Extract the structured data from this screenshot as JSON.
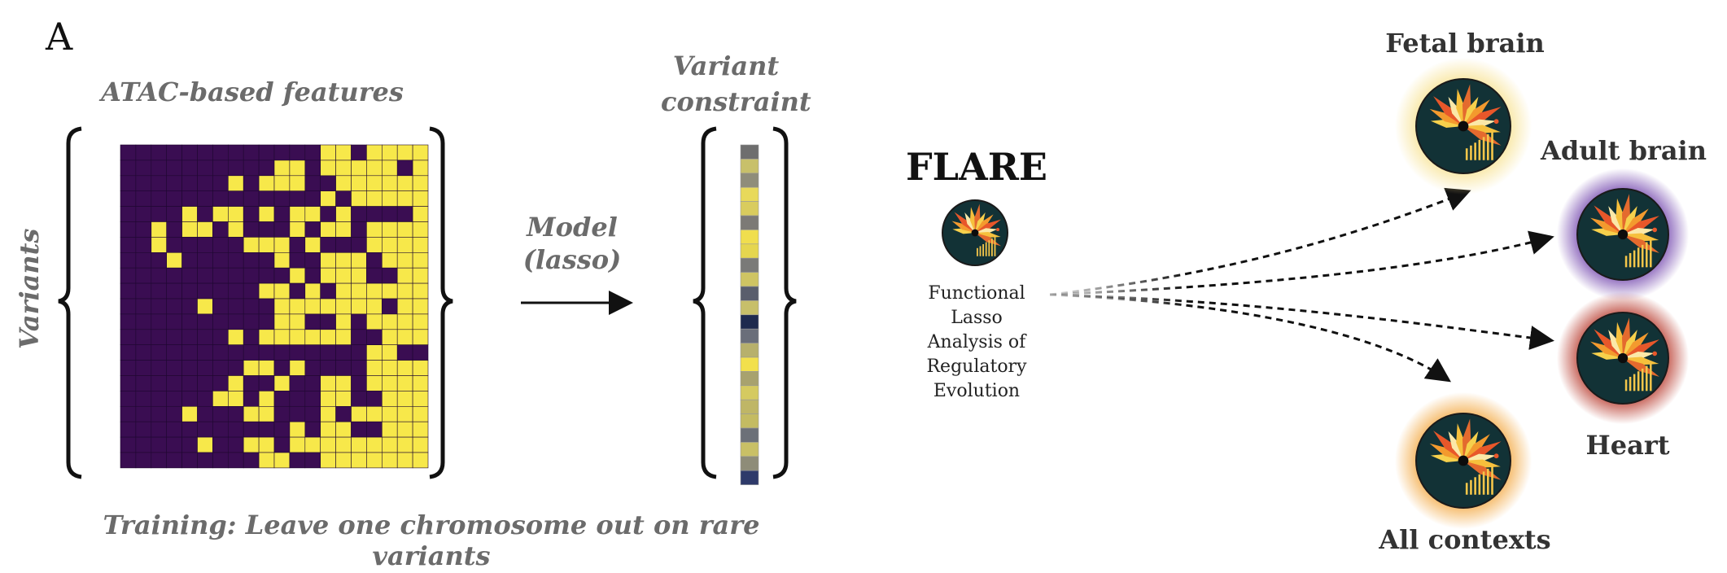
{
  "panel_letter": "A",
  "left": {
    "matrix_title": "ATAC-based features",
    "y_label": "Variants",
    "model_label_line1": "Model",
    "model_label_line2": "(lasso)",
    "vector_title_line1": "Variant",
    "vector_title_line2": "constraint",
    "training_caption": "Training: Leave one chromosome out on rare variants"
  },
  "flare": {
    "title": "FLARE",
    "description": [
      "Functional",
      "Lasso",
      "Analysis of",
      "Regulatory",
      "Evolution"
    ]
  },
  "contexts": [
    {
      "label": "Fetal brain",
      "glow": "#f7e08a"
    },
    {
      "label": "Adult brain",
      "glow": "#6a3aa8"
    },
    {
      "label": "Heart",
      "glow": "#b22a1c"
    },
    {
      "label": "All contexts",
      "glow": "#f2a234"
    }
  ],
  "colors": {
    "matrix_dark": "#3a0d52",
    "matrix_bright": "#f7e84a",
    "grey_text": "#6b6b6b",
    "dark_text": "#333333"
  }
}
